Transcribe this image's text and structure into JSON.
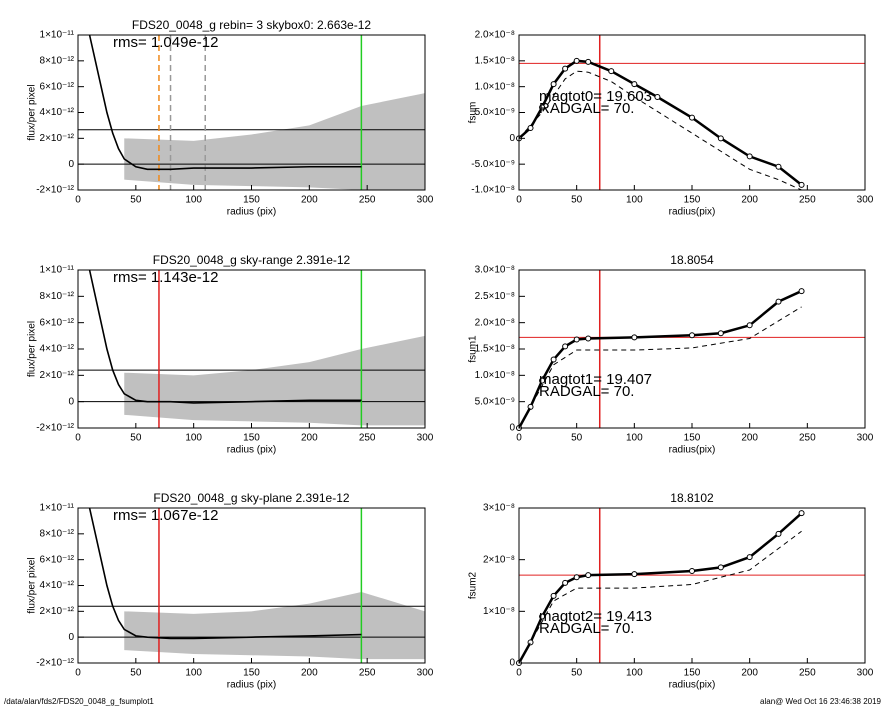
{
  "chart_data": [
    {
      "type": "line",
      "title": "FDS20_0048_g rebin= 3    skybox0:  2.663e-12",
      "xlabel": "radius (pix)",
      "ylabel": "flux/per pixel",
      "annotations": [
        "rms= 1.049e-12"
      ],
      "xlim": [
        0,
        300
      ],
      "xticks": [
        0,
        50,
        100,
        150,
        200,
        250,
        300
      ],
      "ylim": [
        -2e-12,
        1e-11
      ],
      "yticks": [
        {
          "value": -2e-12,
          "label": "-2×10⁻¹²"
        },
        0,
        {
          "value": 2e-12,
          "label": "2×10⁻¹²"
        },
        {
          "value": 4e-12,
          "label": "4×10⁻¹²"
        },
        {
          "value": 6e-12,
          "label": "6×10⁻¹²"
        },
        {
          "value": 8e-12,
          "label": "8×10⁻¹²"
        },
        {
          "value": 1e-11,
          "label": "1×10⁻¹¹"
        }
      ],
      "band": {
        "color": "#b0b0b0",
        "x": [
          40,
          100,
          150,
          200,
          245,
          300
        ],
        "high": [
          2e-12,
          1.8e-12,
          2.3e-12,
          3e-12,
          4.5e-12,
          5.5e-12
        ],
        "low": [
          -1.2e-12,
          -1.6e-12,
          -1.7e-12,
          -1.8e-12,
          -2e-12,
          -2e-12
        ]
      },
      "series": [
        {
          "color": "#000000",
          "x": [
            10,
            15,
            20,
            25,
            30,
            35,
            40,
            50,
            60,
            80,
            100,
            150,
            200,
            245
          ],
          "values": [
            1e-11,
            8e-12,
            6e-12,
            4e-12,
            2.4e-12,
            1.2e-12,
            4e-13,
            -2e-13,
            -4e-13,
            -4e-13,
            -3e-13,
            -3e-13,
            -2e-13,
            -2e-13
          ]
        }
      ],
      "hlines": [
        {
          "y": 2.663e-12,
          "color": "#000000"
        },
        {
          "y": 0,
          "color": "#000000"
        }
      ],
      "vlines": [
        {
          "x": 70,
          "color": "#f08a1c",
          "dash": true
        },
        {
          "x": 80,
          "color": "#999999",
          "dash": true
        },
        {
          "x": 110,
          "color": "#999999",
          "dash": true
        },
        {
          "x": 245,
          "color": "#22cc22"
        }
      ]
    },
    {
      "type": "line",
      "xlabel": "radius(pix)",
      "ylabel": "fsum",
      "annotations": [
        "magtot0=  19.603",
        "RADGAL=     70."
      ],
      "xlim": [
        0,
        300
      ],
      "xticks": [
        0,
        50,
        100,
        150,
        200,
        250,
        300
      ],
      "ylim": [
        -1e-08,
        2e-08
      ],
      "yticks": [
        {
          "value": -1e-08,
          "label": "-1.0×10⁻⁸"
        },
        {
          "value": -5e-09,
          "label": "-5.0×10⁻⁹"
        },
        0,
        {
          "value": 5e-09,
          "label": "5.0×10⁻⁹"
        },
        {
          "value": 1e-08,
          "label": "1.0×10⁻⁸"
        },
        {
          "value": 1.5e-08,
          "label": "1.5×10⁻⁸"
        },
        {
          "value": 2e-08,
          "label": "2.0×10⁻⁸"
        }
      ],
      "series": [
        {
          "color": "#000000",
          "marker": "circle",
          "x": [
            0,
            10,
            20,
            30,
            40,
            50,
            60,
            80,
            100,
            120,
            150,
            175,
            200,
            225,
            245
          ],
          "values": [
            0,
            2e-09,
            6e-09,
            1.05e-08,
            1.35e-08,
            1.5e-08,
            1.48e-08,
            1.3e-08,
            1.05e-08,
            8e-09,
            4e-09,
            0,
            -3.5e-09,
            -5.5e-09,
            -9e-09
          ]
        },
        {
          "color": "#000000",
          "dash": true,
          "x": [
            0,
            20,
            40,
            50,
            60,
            80,
            100,
            150,
            175,
            200,
            225,
            245
          ],
          "values": [
            0,
            5e-09,
            1.15e-08,
            1.3e-08,
            1.28e-08,
            1.1e-08,
            8e-09,
            1e-09,
            -2.5e-09,
            -6e-09,
            -8e-09,
            -1e-08
          ]
        }
      ],
      "hlines": [
        {
          "y": 1.45e-08,
          "color": "#e02020"
        }
      ],
      "vlines": [
        {
          "x": 70,
          "color": "#e02020"
        }
      ]
    },
    {
      "type": "line",
      "title": "FDS20_0048_g sky-range  2.391e-12",
      "xlabel": "radius (pix)",
      "ylabel": "flux/per pixel",
      "annotations": [
        "rms= 1.143e-12"
      ],
      "xlim": [
        0,
        300
      ],
      "xticks": [
        0,
        50,
        100,
        150,
        200,
        250,
        300
      ],
      "ylim": [
        -2e-12,
        1e-11
      ],
      "yticks": [
        {
          "value": -2e-12,
          "label": "-2×10⁻¹²"
        },
        0,
        {
          "value": 2e-12,
          "label": "2×10⁻¹²"
        },
        {
          "value": 4e-12,
          "label": "4×10⁻¹²"
        },
        {
          "value": 6e-12,
          "label": "6×10⁻¹²"
        },
        {
          "value": 8e-12,
          "label": "8×10⁻¹²"
        },
        {
          "value": 1e-11,
          "label": "1×10⁻¹¹"
        }
      ],
      "band": {
        "color": "#b0b0b0",
        "x": [
          40,
          100,
          150,
          200,
          245,
          300
        ],
        "high": [
          2.2e-12,
          2e-12,
          2.4e-12,
          3e-12,
          4e-12,
          5e-12
        ],
        "low": [
          -1e-12,
          -1.4e-12,
          -1.5e-12,
          -1.6e-12,
          -1.8e-12,
          -1.8e-12
        ]
      },
      "series": [
        {
          "color": "#000000",
          "x": [
            10,
            15,
            20,
            25,
            30,
            35,
            40,
            50,
            60,
            80,
            100,
            150,
            200,
            245
          ],
          "values": [
            1e-11,
            8e-12,
            6e-12,
            4e-12,
            2.4e-12,
            1.3e-12,
            6e-13,
            1e-13,
            0,
            0,
            -1e-13,
            0,
            1e-13,
            1e-13
          ]
        }
      ],
      "hlines": [
        {
          "y": 2.391e-12,
          "color": "#000000"
        },
        {
          "y": 0,
          "color": "#000000"
        }
      ],
      "vlines": [
        {
          "x": 70,
          "color": "#e02020"
        },
        {
          "x": 245,
          "color": "#22cc22"
        }
      ]
    },
    {
      "type": "line",
      "title": "18.8054",
      "xlabel": "radius(pix)",
      "ylabel": "fsum1",
      "annotations": [
        "magtot1=  19.407",
        "RADGAL=     70."
      ],
      "xlim": [
        0,
        300
      ],
      "xticks": [
        0,
        50,
        100,
        150,
        200,
        250,
        300
      ],
      "ylim": [
        0,
        3e-08
      ],
      "yticks": [
        0,
        {
          "value": 5e-09,
          "label": "5.0×10⁻⁹"
        },
        {
          "value": 1e-08,
          "label": "1.0×10⁻⁸"
        },
        {
          "value": 1.5e-08,
          "label": "1.5×10⁻⁸"
        },
        {
          "value": 2e-08,
          "label": "2.0×10⁻⁸"
        },
        {
          "value": 2.5e-08,
          "label": "2.5×10⁻⁸"
        },
        {
          "value": 3e-08,
          "label": "3.0×10⁻⁸"
        }
      ],
      "series": [
        {
          "color": "#000000",
          "marker": "circle",
          "x": [
            0,
            10,
            20,
            30,
            40,
            50,
            60,
            100,
            150,
            175,
            200,
            225,
            245
          ],
          "values": [
            0,
            4e-09,
            9e-09,
            1.3e-08,
            1.55e-08,
            1.68e-08,
            1.7e-08,
            1.72e-08,
            1.76e-08,
            1.8e-08,
            1.95e-08,
            2.4e-08,
            2.6e-08
          ]
        },
        {
          "color": "#000000",
          "dash": true,
          "x": [
            0,
            30,
            50,
            100,
            150,
            200,
            245
          ],
          "values": [
            0,
            1.2e-08,
            1.48e-08,
            1.48e-08,
            1.52e-08,
            1.7e-08,
            2.3e-08
          ]
        }
      ],
      "hlines": [
        {
          "y": 1.72e-08,
          "color": "#e02020"
        }
      ],
      "vlines": [
        {
          "x": 70,
          "color": "#e02020"
        }
      ]
    },
    {
      "type": "line",
      "title": "FDS20_0048_g sky-plane  2.391e-12",
      "xlabel": "radius (pix)",
      "ylabel": "flux/per pixel",
      "annotations": [
        "rms= 1.067e-12"
      ],
      "xlim": [
        0,
        300
      ],
      "xticks": [
        0,
        50,
        100,
        150,
        200,
        250,
        300
      ],
      "ylim": [
        -2e-12,
        1e-11
      ],
      "yticks": [
        {
          "value": -2e-12,
          "label": "-2×10⁻¹²"
        },
        0,
        {
          "value": 2e-12,
          "label": "2×10⁻¹²"
        },
        {
          "value": 4e-12,
          "label": "4×10⁻¹²"
        },
        {
          "value": 6e-12,
          "label": "6×10⁻¹²"
        },
        {
          "value": 8e-12,
          "label": "8×10⁻¹²"
        },
        {
          "value": 1e-11,
          "label": "1×10⁻¹¹"
        }
      ],
      "band": {
        "color": "#b0b0b0",
        "x": [
          40,
          100,
          150,
          200,
          245,
          300
        ],
        "high": [
          2e-12,
          1.8e-12,
          2e-12,
          2.6e-12,
          3.5e-12,
          2e-12
        ],
        "low": [
          -1e-12,
          -1.3e-12,
          -1.4e-12,
          -1.5e-12,
          -1.7e-12,
          -1.7e-12
        ]
      },
      "series": [
        {
          "color": "#000000",
          "x": [
            10,
            15,
            20,
            25,
            30,
            35,
            40,
            50,
            60,
            80,
            100,
            150,
            200,
            245
          ],
          "values": [
            1e-11,
            8e-12,
            6e-12,
            4e-12,
            2.4e-12,
            1.3e-12,
            6e-13,
            1e-13,
            0,
            -1e-13,
            -1e-13,
            0,
            1e-13,
            2e-13
          ]
        }
      ],
      "hlines": [
        {
          "y": 2.391e-12,
          "color": "#000000"
        },
        {
          "y": 0,
          "color": "#000000"
        }
      ],
      "vlines": [
        {
          "x": 70,
          "color": "#e02020"
        },
        {
          "x": 245,
          "color": "#22cc22"
        }
      ]
    },
    {
      "type": "line",
      "title": "18.8102",
      "xlabel": "radius(pix)",
      "ylabel": "fsum2",
      "annotations": [
        "magtot2=  19.413",
        "RADGAL=     70."
      ],
      "xlim": [
        0,
        300
      ],
      "xticks": [
        0,
        50,
        100,
        150,
        200,
        250,
        300
      ],
      "ylim": [
        0,
        3e-08
      ],
      "yticks": [
        0,
        {
          "value": 1e-08,
          "label": "1×10⁻⁸"
        },
        {
          "value": 2e-08,
          "label": "2×10⁻⁸"
        },
        {
          "value": 3e-08,
          "label": "3×10⁻⁸"
        }
      ],
      "series": [
        {
          "color": "#000000",
          "marker": "circle",
          "x": [
            0,
            10,
            20,
            30,
            40,
            50,
            60,
            100,
            150,
            175,
            200,
            225,
            245
          ],
          "values": [
            0,
            4e-09,
            9e-09,
            1.3e-08,
            1.55e-08,
            1.66e-08,
            1.7e-08,
            1.72e-08,
            1.78e-08,
            1.85e-08,
            2.05e-08,
            2.5e-08,
            2.9e-08
          ]
        },
        {
          "color": "#000000",
          "dash": true,
          "x": [
            0,
            30,
            50,
            100,
            150,
            200,
            245
          ],
          "values": [
            0,
            1.2e-08,
            1.45e-08,
            1.45e-08,
            1.52e-08,
            1.8e-08,
            2.55e-08
          ]
        }
      ],
      "hlines": [
        {
          "y": 1.7e-08,
          "color": "#e02020"
        }
      ],
      "vlines": [
        {
          "x": 70,
          "color": "#e02020"
        }
      ]
    }
  ],
  "footer": {
    "left": "/data/alan/fds2/FDS20_0048_g_fsumplot1",
    "right": "alan@  Wed Oct 16 23:46:38 2019"
  }
}
